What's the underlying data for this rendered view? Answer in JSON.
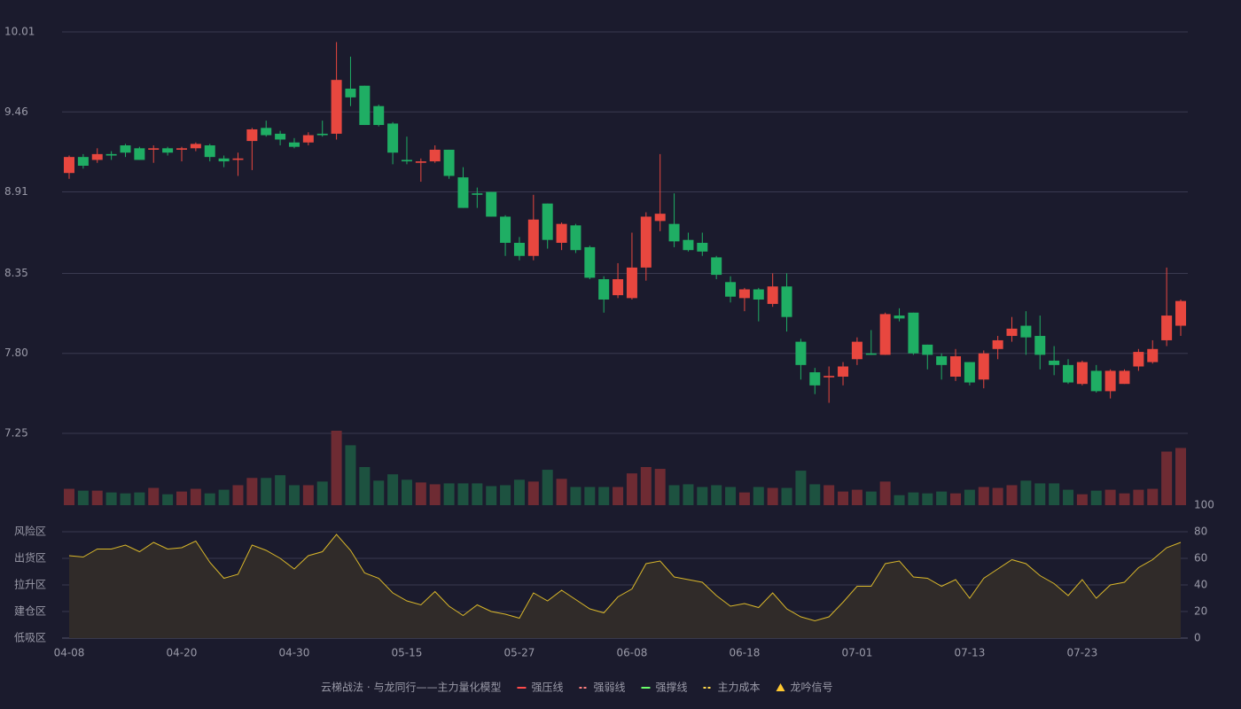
{
  "chart_data": {
    "type": "candlestick",
    "categories": [
      "04-08",
      null,
      null,
      null,
      null,
      null,
      null,
      null,
      "04-20",
      null,
      null,
      null,
      null,
      null,
      null,
      null,
      "04-30",
      null,
      null,
      null,
      null,
      null,
      null,
      null,
      "05-15",
      null,
      null,
      null,
      null,
      null,
      null,
      null,
      "05-27",
      null,
      null,
      null,
      null,
      null,
      null,
      null,
      "06-08",
      null,
      null,
      null,
      null,
      null,
      null,
      null,
      "06-18",
      null,
      null,
      null,
      null,
      null,
      null,
      null,
      "07-01",
      null,
      null,
      null,
      null,
      null,
      null,
      null,
      "07-13",
      null,
      null,
      null,
      null,
      null,
      null,
      null,
      "07-23",
      null,
      null,
      null,
      null,
      null,
      null,
      null
    ],
    "open": [
      9.04,
      9.15,
      9.13,
      9.17,
      9.23,
      9.21,
      9.2,
      9.21,
      9.2,
      9.21,
      9.23,
      9.14,
      9.13,
      9.26,
      9.35,
      9.31,
      9.25,
      9.25,
      9.31,
      9.31,
      9.62,
      9.64,
      9.5,
      9.38,
      9.13,
      9.11,
      9.12,
      9.2,
      9.01,
      8.9,
      8.91,
      8.74,
      8.56,
      8.47,
      8.83,
      8.56,
      8.68,
      8.53,
      8.31,
      8.2,
      8.18,
      8.39,
      8.71,
      8.69,
      8.58,
      8.56,
      8.46,
      8.29,
      8.18,
      8.24,
      8.14,
      8.26,
      7.88,
      7.67,
      7.635,
      7.64,
      7.76,
      7.8,
      7.79,
      8.06,
      8.08,
      7.86,
      7.78,
      7.64,
      7.74,
      7.62,
      7.83,
      7.92,
      7.99,
      7.92,
      7.75,
      7.72,
      7.59,
      7.68,
      7.54,
      7.59,
      7.71,
      7.74,
      7.89,
      7.99
    ],
    "high": [
      9.16,
      9.17,
      9.21,
      9.19,
      9.24,
      9.22,
      9.23,
      9.22,
      9.22,
      9.25,
      9.24,
      9.16,
      9.18,
      9.35,
      9.4,
      9.33,
      9.28,
      9.32,
      9.4,
      9.94,
      9.84,
      9.64,
      9.51,
      9.39,
      9.29,
      9.14,
      9.23,
      9.2,
      9.08,
      8.94,
      8.91,
      8.75,
      8.6,
      8.89,
      8.83,
      8.7,
      8.69,
      8.54,
      8.33,
      8.42,
      8.63,
      8.77,
      9.17,
      8.9,
      8.63,
      8.63,
      8.47,
      8.33,
      8.25,
      8.25,
      8.35,
      8.35,
      7.9,
      7.7,
      7.71,
      7.74,
      7.91,
      7.96,
      8.08,
      8.11,
      8.08,
      7.86,
      7.8,
      7.83,
      7.74,
      7.82,
      7.92,
      8.05,
      8.09,
      8.06,
      7.85,
      7.76,
      7.75,
      7.72,
      7.69,
      7.69,
      7.83,
      7.89,
      8.39,
      8.17
    ],
    "low": [
      9.0,
      9.07,
      9.11,
      9.13,
      9.15,
      9.13,
      9.11,
      9.16,
      9.12,
      9.19,
      9.12,
      9.08,
      9.02,
      9.06,
      9.29,
      9.23,
      9.21,
      9.23,
      9.29,
      9.27,
      9.5,
      9.37,
      9.36,
      9.1,
      9.1,
      8.98,
      9.11,
      9.0,
      8.8,
      8.8,
      8.74,
      8.47,
      8.44,
      8.44,
      8.52,
      8.51,
      8.49,
      8.31,
      8.08,
      8.18,
      8.17,
      8.3,
      8.64,
      8.53,
      8.5,
      8.47,
      8.31,
      8.15,
      8.09,
      8.02,
      8.12,
      7.95,
      7.62,
      7.52,
      7.46,
      7.58,
      7.72,
      7.79,
      7.79,
      8.02,
      7.79,
      7.69,
      7.62,
      7.61,
      7.58,
      7.56,
      7.76,
      7.88,
      7.79,
      7.69,
      7.65,
      7.59,
      7.58,
      7.53,
      7.49,
      7.59,
      7.68,
      7.73,
      7.85,
      7.92
    ],
    "close": [
      9.15,
      9.09,
      9.17,
      9.16,
      9.18,
      9.13,
      9.21,
      9.18,
      9.21,
      9.24,
      9.15,
      9.12,
      9.14,
      9.34,
      9.3,
      9.27,
      9.22,
      9.3,
      9.3,
      9.68,
      9.56,
      9.37,
      9.37,
      9.18,
      9.12,
      9.12,
      9.2,
      9.02,
      8.8,
      8.89,
      8.74,
      8.56,
      8.47,
      8.72,
      8.58,
      8.69,
      8.51,
      8.32,
      8.17,
      8.31,
      8.39,
      8.74,
      8.76,
      8.57,
      8.51,
      8.5,
      8.34,
      8.19,
      8.24,
      8.17,
      8.26,
      8.05,
      7.72,
      7.58,
      7.645,
      7.71,
      7.88,
      7.79,
      8.07,
      8.04,
      7.8,
      7.79,
      7.72,
      7.78,
      7.6,
      7.8,
      7.89,
      7.97,
      7.91,
      7.79,
      7.72,
      7.6,
      7.74,
      7.54,
      7.68,
      7.68,
      7.81,
      7.83,
      8.06,
      8.16
    ],
    "up_color": "#e8473f",
    "down_color": "#1fae64",
    "ylim": [
      7.25,
      10.01
    ],
    "yticks": [
      7.25,
      {
        "value": 7.8,
        "label": "7.80"
      },
      8.35,
      8.91,
      9.46,
      10.01
    ],
    "grid": true,
    "volume": {
      "values": [
        18,
        16,
        16,
        14,
        13,
        14,
        19,
        12,
        15,
        18,
        13,
        17,
        22,
        30,
        30,
        33,
        22,
        22,
        26,
        82,
        66,
        42,
        27,
        34,
        28,
        25,
        23,
        24,
        24,
        24,
        21,
        22,
        28,
        26,
        39,
        29,
        20,
        20,
        20,
        20,
        35,
        42,
        40,
        22,
        23,
        20,
        22,
        20,
        14,
        20,
        19,
        19,
        38,
        23,
        22,
        15,
        17,
        15,
        26,
        11,
        14,
        13,
        15,
        13,
        17,
        20,
        19,
        22,
        27,
        24,
        24,
        17,
        12,
        16,
        17,
        13,
        17,
        18,
        59,
        63
      ],
      "up_color": "#6e2b33",
      "down_color": "#1d5240"
    },
    "indicator": {
      "type": "area",
      "values": [
        62,
        61,
        67,
        67,
        70,
        65,
        72,
        67,
        68,
        73,
        57,
        45,
        48,
        70,
        66,
        60,
        52,
        62,
        65,
        78,
        66,
        49,
        45,
        34,
        28,
        25,
        35,
        24,
        17,
        25,
        20,
        18,
        15,
        34,
        28,
        36,
        29,
        22,
        19,
        31,
        37,
        56,
        58,
        46,
        44,
        42,
        32,
        24,
        26,
        23,
        34,
        22,
        16,
        13,
        16,
        27,
        39,
        39,
        56,
        58,
        46,
        45,
        39,
        44,
        30,
        45,
        52,
        59,
        56,
        47,
        41,
        32,
        44,
        30,
        40,
        42,
        53,
        59,
        68,
        72
      ],
      "color": "#d9b72a",
      "fill": "#302b29",
      "ylim": [
        0,
        100
      ],
      "yticks": [
        0,
        20,
        40,
        60,
        80,
        100
      ],
      "ytick_colors": [
        "#e84a4a",
        "#f0a030",
        "#4a90e2",
        "#e040e0",
        "#f0a030",
        "#3ee05a"
      ],
      "zones": [
        {
          "label": "低吸区",
          "value": 0,
          "color": "#e84a5a"
        },
        {
          "label": "建仓区",
          "value": 20,
          "color": "#f05a4a"
        },
        {
          "label": "拉升区",
          "value": 40,
          "color": "#4a90e2"
        },
        {
          "label": "出货区",
          "value": 60,
          "color": "#e040e0"
        },
        {
          "label": "风险区",
          "value": 80,
          "color": "#f0a030"
        }
      ]
    },
    "legend": {
      "title": "云梯战法 · 与龙同行——主力量化模型",
      "title_color": "#e8c060",
      "items": [
        {
          "name": "强压线",
          "color": "#ff4a4a",
          "style": "solid"
        },
        {
          "name": "强弱线",
          "color": "#ff8080",
          "style": "dashed"
        },
        {
          "name": "强撑线",
          "color": "#6aff6a",
          "style": "solid"
        },
        {
          "name": "主力成本",
          "color": "#ffd84a",
          "style": "dashed"
        },
        {
          "name": "龙吟信号",
          "color": "#ffc830",
          "style": "triangle"
        }
      ]
    }
  }
}
